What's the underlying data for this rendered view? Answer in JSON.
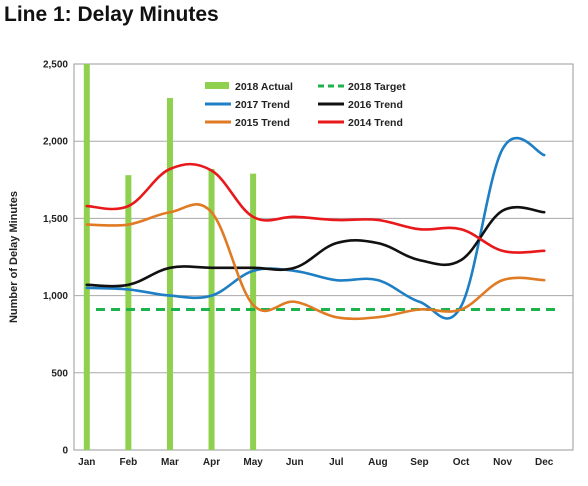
{
  "title": "Line 1: Delay Minutes",
  "chart_data": {
    "type": "bar+line",
    "title": "Line 1: Delay Minutes",
    "xlabel": "",
    "ylabel": "Number of Delay Minutes",
    "ylim": [
      0,
      2500
    ],
    "yticks": [
      "0",
      "500",
      "1,000",
      "1,500",
      "2,000",
      "2,500"
    ],
    "ytick_values": [
      0,
      500,
      1000,
      1500,
      2000,
      2500
    ],
    "grid": true,
    "legend_position": "top-center",
    "categories": [
      "Jan",
      "Feb",
      "Mar",
      "Apr",
      "May",
      "Jun",
      "Jul",
      "Aug",
      "Sep",
      "Oct",
      "Nov",
      "Dec"
    ],
    "series": [
      {
        "name": "2018 Actual",
        "kind": "bar",
        "color": "#8fd14f",
        "values": [
          2500,
          1780,
          2280,
          1820,
          1790,
          null,
          null,
          null,
          null,
          null,
          null,
          null
        ]
      },
      {
        "name": "2018 Target",
        "kind": "dashed-line",
        "color": "#1db34a",
        "values": [
          910,
          910,
          910,
          910,
          910,
          910,
          910,
          910,
          910,
          910,
          910,
          910
        ]
      },
      {
        "name": "2017 Trend",
        "kind": "line",
        "color": "#1f7fc4",
        "values": [
          1050,
          1040,
          1000,
          1000,
          1160,
          1160,
          1100,
          1100,
          960,
          930,
          1950,
          1910
        ]
      },
      {
        "name": "2016 Trend",
        "kind": "line",
        "color": "#111111",
        "values": [
          1070,
          1070,
          1180,
          1180,
          1180,
          1180,
          1340,
          1340,
          1230,
          1230,
          1550,
          1540
        ]
      },
      {
        "name": "2015 Trend",
        "kind": "line",
        "color": "#e07b24",
        "values": [
          1460,
          1460,
          1540,
          1540,
          940,
          960,
          860,
          860,
          910,
          910,
          1100,
          1100
        ]
      },
      {
        "name": "2014 Trend",
        "kind": "line",
        "color": "#e8181b",
        "values": [
          1580,
          1580,
          1820,
          1810,
          1510,
          1510,
          1490,
          1490,
          1430,
          1430,
          1290,
          1290
        ]
      }
    ]
  }
}
